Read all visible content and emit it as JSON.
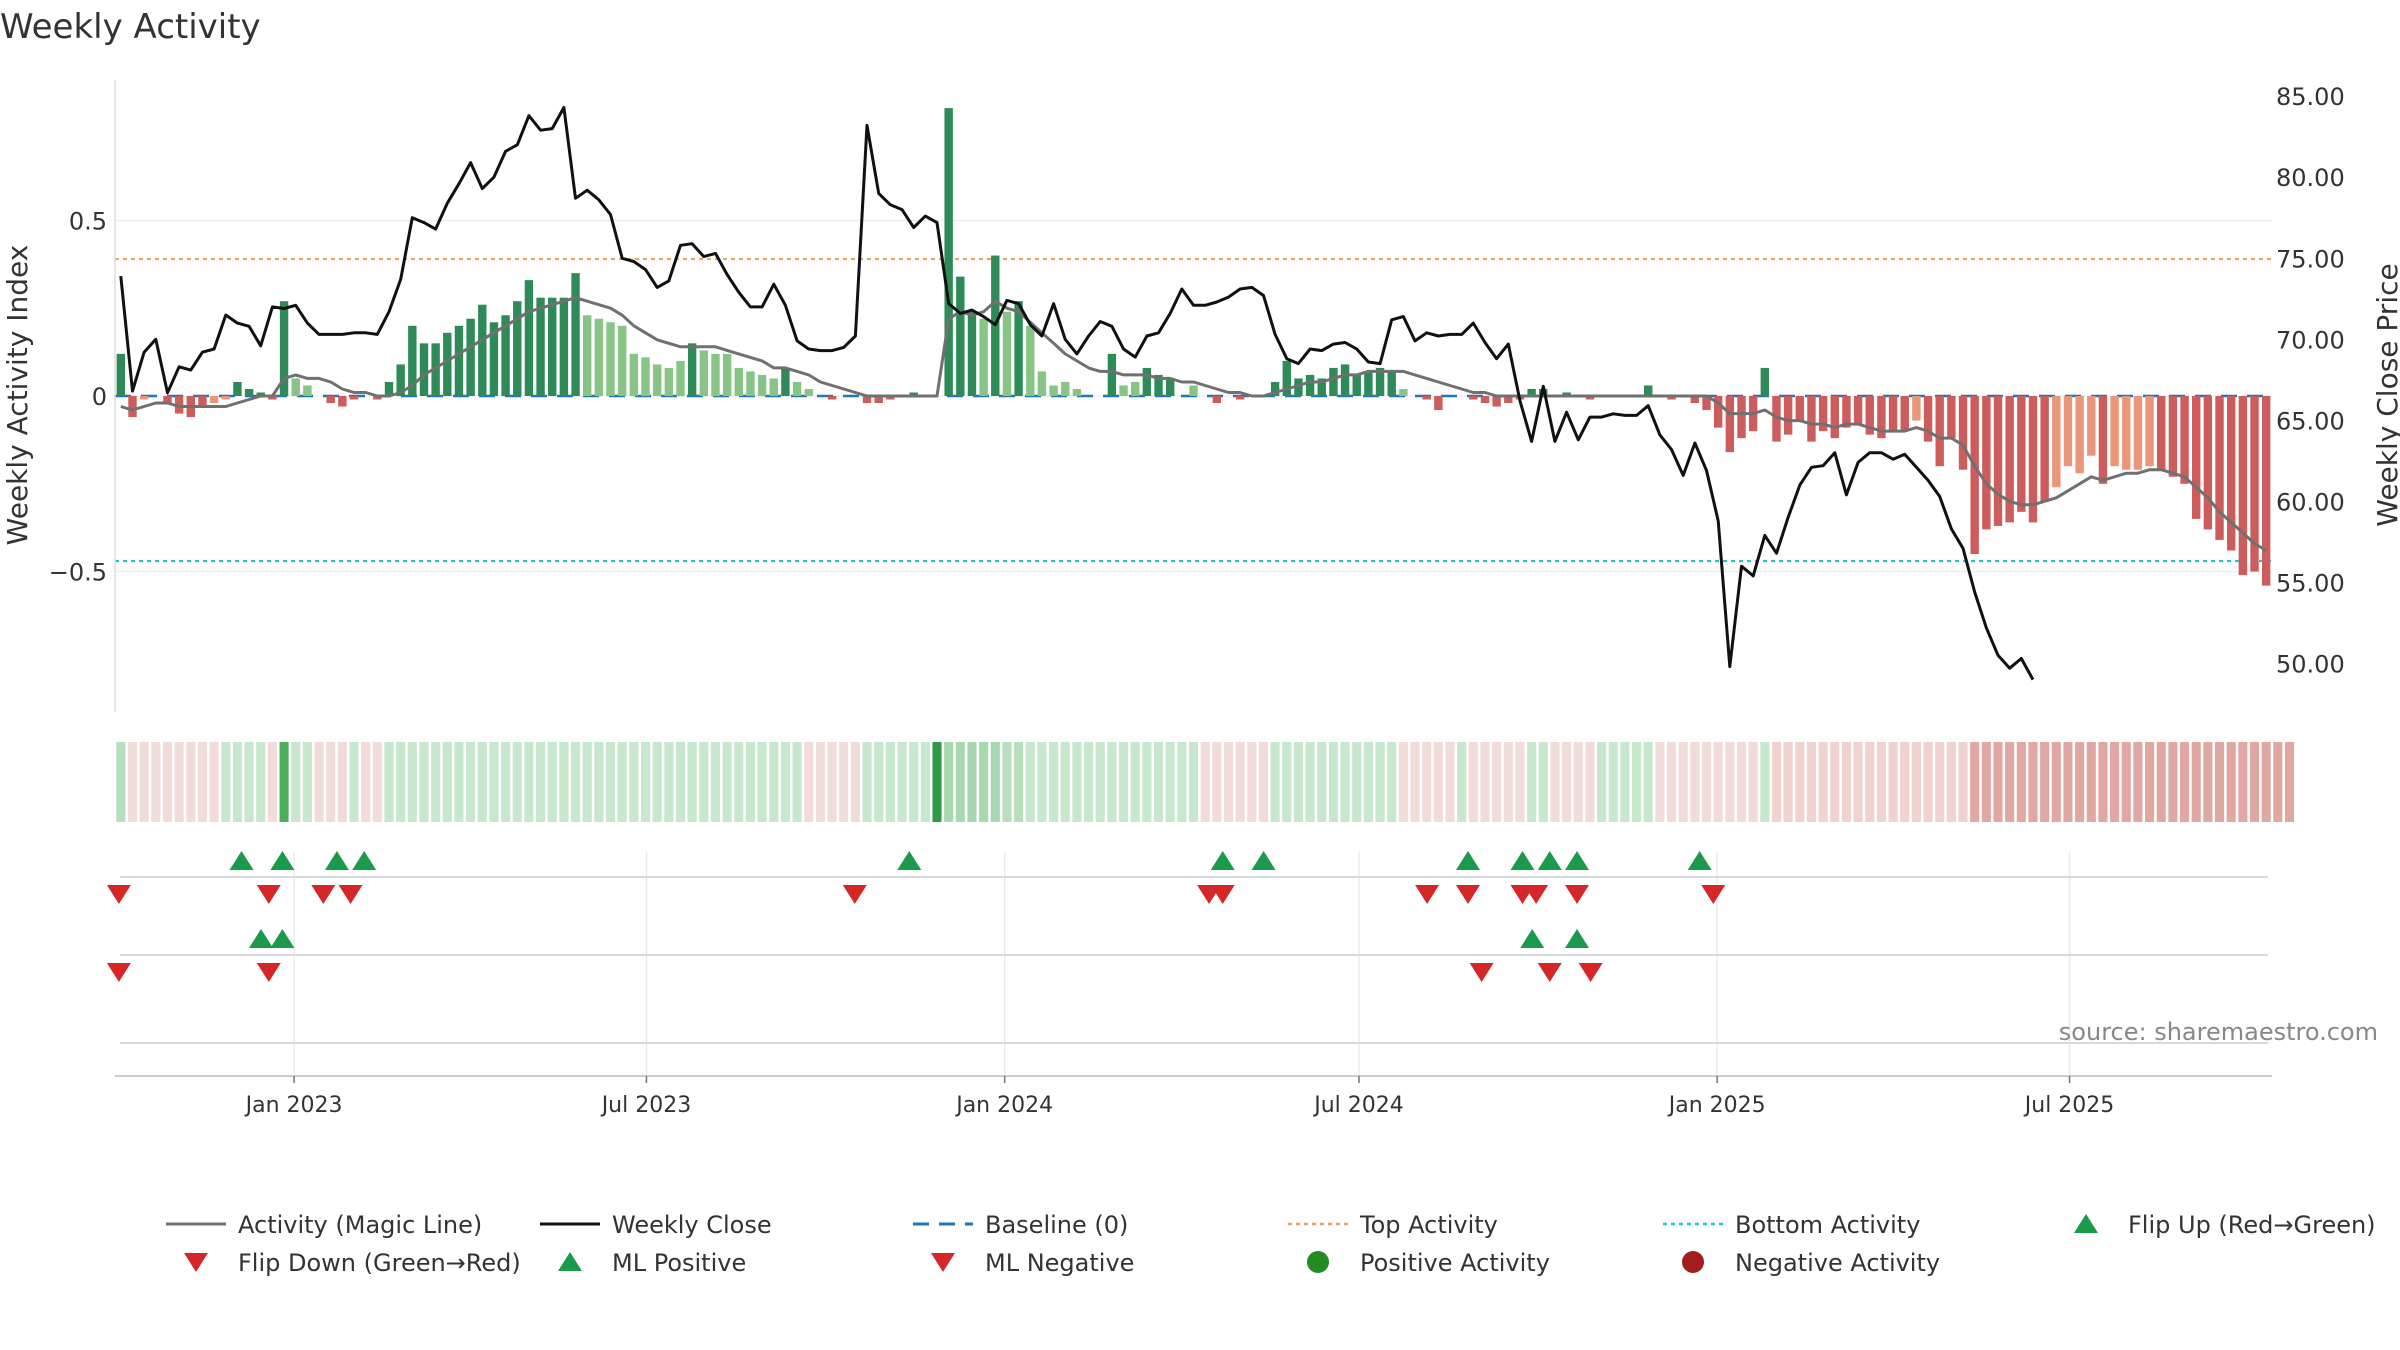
{
  "chart_data": {
    "type": "bar",
    "title": "Weekly Activity",
    "ylabel_left": "Weekly Activity Index",
    "ylabel_right": "Weekly Close Price",
    "source": "source: sharemaestro.com",
    "left_ylim": [
      -0.9,
      0.9
    ],
    "left_ticks": [
      {
        "v": 0.5,
        "label": "0.5"
      },
      {
        "v": 0,
        "label": "0"
      },
      {
        "v": -0.5,
        "label": "−0.5"
      }
    ],
    "right_ylim": [
      47.0,
      86.0
    ],
    "right_ticks": [
      {
        "v": 85,
        "label": "85.00"
      },
      {
        "v": 80,
        "label": "80.00"
      },
      {
        "v": 75,
        "label": "75.00"
      },
      {
        "v": 70,
        "label": "70.00"
      },
      {
        "v": 65,
        "label": "65.00"
      },
      {
        "v": 60,
        "label": "60.00"
      },
      {
        "v": 55,
        "label": "55.00"
      },
      {
        "v": 50,
        "label": "50.00"
      }
    ],
    "x_range": [
      "2022-10-01",
      "2025-10-13"
    ],
    "x_ticks": [
      {
        "date": "2023-01-01",
        "label": "Jan 2023"
      },
      {
        "date": "2023-07-01",
        "label": "Jul 2023"
      },
      {
        "date": "2024-01-01",
        "label": "Jan 2024"
      },
      {
        "date": "2024-07-01",
        "label": "Jul 2024"
      },
      {
        "date": "2025-01-01",
        "label": "Jan 2025"
      },
      {
        "date": "2025-07-01",
        "label": "Jul 2025"
      }
    ],
    "top_activity": 0.39,
    "bottom_activity": -0.47,
    "baseline": 0,
    "activity": [
      0.12,
      -0.06,
      -0.01,
      0.0,
      -0.02,
      -0.05,
      -0.06,
      -0.03,
      -0.02,
      -0.01,
      0.04,
      0.02,
      0.01,
      -0.01,
      0.27,
      0.05,
      0.03,
      0.0,
      -0.02,
      -0.03,
      -0.01,
      0.0,
      -0.01,
      0.04,
      0.09,
      0.2,
      0.15,
      0.15,
      0.18,
      0.2,
      0.22,
      0.26,
      0.21,
      0.23,
      0.27,
      0.33,
      0.28,
      0.28,
      0.28,
      0.35,
      0.23,
      0.22,
      0.21,
      0.2,
      0.12,
      0.11,
      0.09,
      0.08,
      0.1,
      0.15,
      0.13,
      0.12,
      0.12,
      0.08,
      0.07,
      0.06,
      0.05,
      0.08,
      0.04,
      0.02,
      0.0,
      -0.01,
      0.0,
      0.0,
      -0.02,
      -0.02,
      -0.01,
      0.0,
      0.01,
      0.0,
      0.0,
      0.82,
      0.34,
      0.24,
      0.22,
      0.4,
      0.24,
      0.27,
      0.2,
      0.07,
      0.03,
      0.04,
      0.02,
      0.0,
      0.0,
      0.12,
      0.03,
      0.04,
      0.08,
      0.06,
      0.05,
      0.0,
      0.03,
      0.0,
      -0.02,
      0.0,
      -0.01,
      0.0,
      0.0,
      0.04,
      0.1,
      0.05,
      0.06,
      0.05,
      0.08,
      0.09,
      0.06,
      0.07,
      0.08,
      0.07,
      0.02,
      0.0,
      -0.01,
      -0.04,
      0.0,
      0.0,
      -0.01,
      -0.02,
      -0.03,
      -0.02,
      -0.01,
      0.02,
      0.02,
      0.0,
      0.01,
      0.0,
      -0.01,
      0.0,
      0.0,
      0.0,
      0.0,
      0.03,
      0.0,
      -0.01,
      0.0,
      -0.02,
      -0.04,
      -0.09,
      -0.16,
      -0.12,
      -0.1,
      0.08,
      -0.13,
      -0.11,
      -0.07,
      -0.13,
      -0.1,
      -0.12,
      -0.09,
      -0.08,
      -0.11,
      -0.12,
      -0.1,
      -0.1,
      -0.07,
      -0.13,
      -0.2,
      -0.12,
      -0.21,
      -0.45,
      -0.38,
      -0.37,
      -0.36,
      -0.33,
      -0.36,
      -0.3,
      -0.26,
      -0.2,
      -0.22,
      -0.17,
      -0.25,
      -0.2,
      -0.21,
      -0.21,
      -0.2,
      -0.21,
      -0.23,
      -0.25,
      -0.35,
      -0.38,
      -0.41,
      -0.44,
      -0.51,
      -0.5,
      -0.54
    ],
    "magic_line": [
      -0.03,
      -0.04,
      -0.03,
      -0.02,
      -0.02,
      -0.03,
      -0.03,
      -0.03,
      -0.03,
      -0.03,
      -0.02,
      -0.01,
      0.0,
      0.0,
      0.05,
      0.06,
      0.05,
      0.05,
      0.04,
      0.02,
      0.01,
      0.01,
      0.0,
      0.0,
      0.01,
      0.03,
      0.06,
      0.08,
      0.1,
      0.12,
      0.14,
      0.16,
      0.18,
      0.2,
      0.22,
      0.24,
      0.25,
      0.26,
      0.27,
      0.28,
      0.27,
      0.26,
      0.25,
      0.23,
      0.2,
      0.18,
      0.16,
      0.15,
      0.14,
      0.14,
      0.14,
      0.14,
      0.13,
      0.12,
      0.11,
      0.1,
      0.08,
      0.08,
      0.07,
      0.06,
      0.04,
      0.03,
      0.02,
      0.01,
      0.0,
      0.0,
      0.0,
      0.0,
      0.0,
      0.0,
      0.0,
      0.22,
      0.24,
      0.23,
      0.24,
      0.27,
      0.25,
      0.24,
      0.21,
      0.18,
      0.15,
      0.12,
      0.1,
      0.08,
      0.07,
      0.07,
      0.06,
      0.06,
      0.06,
      0.05,
      0.05,
      0.04,
      0.04,
      0.03,
      0.02,
      0.01,
      0.01,
      0.0,
      0.0,
      0.01,
      0.02,
      0.03,
      0.04,
      0.04,
      0.05,
      0.06,
      0.06,
      0.07,
      0.07,
      0.07,
      0.07,
      0.06,
      0.05,
      0.04,
      0.03,
      0.02,
      0.01,
      0.01,
      0.0,
      0.0,
      0.0,
      0.0,
      0.0,
      0.0,
      0.0,
      0.0,
      0.0,
      0.0,
      0.0,
      0.0,
      0.0,
      0.0,
      0.0,
      0.0,
      0.0,
      0.0,
      0.0,
      -0.02,
      -0.05,
      -0.05,
      -0.05,
      -0.04,
      -0.06,
      -0.07,
      -0.07,
      -0.08,
      -0.08,
      -0.09,
      -0.08,
      -0.08,
      -0.09,
      -0.1,
      -0.1,
      -0.1,
      -0.09,
      -0.1,
      -0.12,
      -0.12,
      -0.14,
      -0.2,
      -0.25,
      -0.28,
      -0.3,
      -0.31,
      -0.31,
      -0.3,
      -0.29,
      -0.27,
      -0.25,
      -0.23,
      -0.24,
      -0.23,
      -0.22,
      -0.22,
      -0.21,
      -0.21,
      -0.22,
      -0.23,
      -0.26,
      -0.29,
      -0.33,
      -0.36,
      -0.39,
      -0.42,
      -0.44
    ],
    "weekly_close": [
      73.9,
      66.8,
      69.2,
      70.0,
      66.7,
      68.3,
      68.1,
      69.2,
      69.4,
      71.5,
      71.0,
      70.8,
      69.6,
      72.0,
      71.9,
      72.1,
      71.0,
      70.3,
      70.3,
      70.3,
      70.4,
      70.4,
      70.3,
      71.7,
      73.7,
      77.5,
      77.2,
      76.8,
      78.4,
      79.6,
      80.9,
      79.3,
      80.0,
      81.6,
      82.0,
      83.8,
      82.9,
      83.0,
      84.3,
      78.7,
      79.2,
      78.6,
      77.7,
      75.0,
      74.8,
      74.3,
      73.2,
      73.6,
      75.8,
      75.9,
      75.1,
      75.3,
      74.0,
      72.9,
      72.0,
      72.0,
      73.4,
      72.1,
      69.9,
      69.4,
      69.3,
      69.3,
      69.5,
      70.2,
      83.2,
      79.0,
      78.3,
      78.0,
      76.9,
      77.6,
      77.2,
      72.2,
      71.6,
      71.8,
      71.4,
      70.9,
      72.4,
      72.2,
      70.9,
      70.2,
      72.2,
      70.0,
      69.1,
      70.2,
      71.1,
      70.8,
      69.4,
      68.9,
      70.2,
      70.4,
      71.6,
      73.1,
      72.1,
      72.1,
      72.3,
      72.6,
      73.1,
      73.2,
      72.7,
      70.3,
      68.8,
      68.5,
      69.4,
      69.3,
      69.7,
      69.8,
      69.4,
      68.6,
      68.5,
      71.2,
      71.4,
      69.9,
      70.4,
      70.2,
      70.3,
      70.3,
      71.0,
      69.8,
      68.8,
      69.7,
      66.2,
      63.7,
      67.1,
      63.7,
      65.5,
      63.8,
      65.2,
      65.2,
      65.4,
      65.3,
      65.3,
      65.9,
      64.1,
      63.2,
      61.6,
      63.6,
      61.9,
      58.8,
      49.8,
      56.0,
      55.4,
      57.9,
      56.8,
      59.0,
      61.0,
      62.1,
      62.2,
      63.0,
      60.4,
      62.4,
      63.0,
      63.0,
      62.6,
      62.9,
      62.1,
      61.3,
      60.3,
      58.3,
      57.1,
      54.4,
      52.2,
      50.5,
      49.7,
      50.3,
      49.0
    ],
    "color_band": [
      "#b7dfbe",
      "#f2dcd9",
      "#f2dcd9",
      "#f2dcd9",
      "#f2dcd9",
      "#f2dcd9",
      "#f2dcd9",
      "#f2dcd9",
      "#f2dcd9",
      "#c7e8cc",
      "#c7e8cc",
      "#c7e8cc",
      "#c7e8cc",
      "#f2dcd9",
      "#4caf5c",
      "#c7e8cc",
      "#c7e8cc",
      "#f2dcd9",
      "#f2dcd9",
      "#f2dcd9",
      "#c7e8cc",
      "#f2dcd9",
      "#f2dcd9",
      "#c7e8cc",
      "#c7e8cc",
      "#c7e8cc",
      "#c7e8cc",
      "#c7e8cc",
      "#c7e8cc",
      "#c7e8cc",
      "#c7e8cc",
      "#c7e8cc",
      "#c7e8cc",
      "#c7e8cc",
      "#c7e8cc",
      "#c7e8cc",
      "#c7e8cc",
      "#c7e8cc",
      "#c7e8cc",
      "#c7e8cc",
      "#c7e8cc",
      "#c7e8cc",
      "#c7e8cc",
      "#c7e8cc",
      "#c7e8cc",
      "#c7e8cc",
      "#c7e8cc",
      "#c7e8cc",
      "#c7e8cc",
      "#c7e8cc",
      "#c7e8cc",
      "#c7e8cc",
      "#c7e8cc",
      "#c7e8cc",
      "#c7e8cc",
      "#c7e8cc",
      "#c7e8cc",
      "#c7e8cc",
      "#c7e8cc",
      "#f2dcd9",
      "#f2dcd9",
      "#f2dcd9",
      "#f2dcd9",
      "#f2dcd9",
      "#c7e8cc",
      "#c7e8cc",
      "#c7e8cc",
      "#c7e8cc",
      "#c7e8cc",
      "#c7e8cc",
      "#2e9a47",
      "#a8d8b0",
      "#a8d8b0",
      "#a8d8b0",
      "#a8d8b0",
      "#a8d8b0",
      "#b7dfbe",
      "#b7dfbe",
      "#c7e8cc",
      "#c7e8cc",
      "#c7e8cc",
      "#c7e8cc",
      "#c7e8cc",
      "#c7e8cc",
      "#c7e8cc",
      "#c7e8cc",
      "#c7e8cc",
      "#c7e8cc",
      "#c7e8cc",
      "#c7e8cc",
      "#c7e8cc",
      "#c7e8cc",
      "#c7e8cc",
      "#f2dcd9",
      "#f2dcd9",
      "#f2dcd9",
      "#f2dcd9",
      "#f2dcd9",
      "#f2dcd9",
      "#c7e8cc",
      "#c7e8cc",
      "#c7e8cc",
      "#c7e8cc",
      "#c7e8cc",
      "#c7e8cc",
      "#c7e8cc",
      "#c7e8cc",
      "#c7e8cc",
      "#c7e8cc",
      "#c7e8cc",
      "#f2dcd9",
      "#f2dcd9",
      "#f2dcd9",
      "#f2dcd9",
      "#f2dcd9",
      "#c7e8cc",
      "#f2dcd9",
      "#f2dcd9",
      "#f2dcd9",
      "#f2dcd9",
      "#f2dcd9",
      "#c7e8cc",
      "#c7e8cc",
      "#f2dcd9",
      "#f2dcd9",
      "#f2dcd9",
      "#f2dcd9",
      "#c7e8cc",
      "#c7e8cc",
      "#c7e8cc",
      "#c7e8cc",
      "#c7e8cc",
      "#f2dcd9",
      "#f2dcd9",
      "#f2dcd9",
      "#f2dcd9",
      "#f2dcd9",
      "#f2dcd9",
      "#f2dcd9",
      "#f2dcd9",
      "#f2dcd9",
      "#c7e8cc",
      "#f0d2ce",
      "#f0d2ce",
      "#f0d2ce",
      "#f0d2ce",
      "#f0d2ce",
      "#f0d2ce",
      "#f0d2ce",
      "#f0d2ce",
      "#f0d2ce",
      "#f0d2ce",
      "#f0d2ce",
      "#f0d2ce",
      "#f0d2ce",
      "#f0d2ce",
      "#f0d2ce",
      "#f0d2ce",
      "#f0d2ce",
      "#e0a7a3",
      "#e0a7a3",
      "#e0a7a3",
      "#e0a7a3",
      "#e0a7a3",
      "#e0a7a3",
      "#e0a7a3",
      "#e0a7a3",
      "#e0a7a3",
      "#e0a7a3",
      "#e0a7a3",
      "#e0a7a3",
      "#e0a7a3",
      "#e0a7a3",
      "#e0a7a3",
      "#e0a7a3",
      "#e0a7a3",
      "#e0a7a3",
      "#e0a7a3",
      "#e0a7a3",
      "#e0a7a3",
      "#e0a7a3",
      "#e0a7a3",
      "#e0a7a3",
      "#e0a7a3",
      "#e0a7a3",
      "#e0a7a3",
      "#e0a7a3"
    ],
    "flip_up_dates": [
      "2022-12-05",
      "2022-12-26",
      "2023-01-23",
      "2023-02-06",
      "2023-11-13",
      "2024-04-22",
      "2024-05-13",
      "2024-08-26",
      "2024-09-23",
      "2024-10-07",
      "2024-10-21",
      "2024-12-23"
    ],
    "flip_down_dates": [
      "2022-10-03",
      "2022-12-19",
      "2023-01-16",
      "2023-01-30",
      "2023-10-16",
      "2024-04-15",
      "2024-04-22",
      "2024-08-05",
      "2024-08-26",
      "2024-09-23",
      "2024-09-30",
      "2024-10-21",
      "2024-12-30"
    ],
    "ml_positive_dates": [
      "2022-12-15",
      "2022-12-26",
      "2024-09-28",
      "2024-10-21"
    ],
    "ml_negative_dates": [
      "2022-10-03",
      "2022-12-19",
      "2024-09-02",
      "2024-10-07",
      "2024-10-28"
    ],
    "colors": {
      "strong_green": "#2e8b57",
      "light_green": "#87c486",
      "strong_red": "#cd5c5c",
      "light_red": "#e9967a",
      "magic_line": "#707070",
      "close": "#111111",
      "baseline": "#1f77b4",
      "top_activity": "#e8a860",
      "bottom_activity": "#22c7c7",
      "flip_up": "#1a9a4a",
      "flip_down": "#d62728",
      "positive_dot": "#228b22",
      "negative_dot": "#a31d1d"
    },
    "legend": [
      {
        "key": "magic_line",
        "label": "Activity (Magic Line)",
        "symbol": "line"
      },
      {
        "key": "close",
        "label": "Weekly Close",
        "symbol": "line"
      },
      {
        "key": "baseline",
        "label": "Baseline (0)",
        "symbol": "dash"
      },
      {
        "key": "top_activity",
        "label": "Top Activity",
        "symbol": "dot-line"
      },
      {
        "key": "bottom_activity",
        "label": "Bottom Activity",
        "symbol": "dot-line"
      },
      {
        "key": "flip_up",
        "label": "Flip Up (Red→Green)",
        "symbol": "tri-up"
      },
      {
        "key": "flip_down",
        "label": "Flip Down (Green→Red)",
        "symbol": "tri-down"
      },
      {
        "key": "flip_up",
        "label": "ML Positive",
        "symbol": "tri-up"
      },
      {
        "key": "flip_down",
        "label": "ML Negative",
        "symbol": "tri-down"
      },
      {
        "key": "positive_dot",
        "label": "Positive Activity",
        "symbol": "circle"
      },
      {
        "key": "negative_dot",
        "label": "Negative Activity",
        "symbol": "circle"
      }
    ]
  }
}
